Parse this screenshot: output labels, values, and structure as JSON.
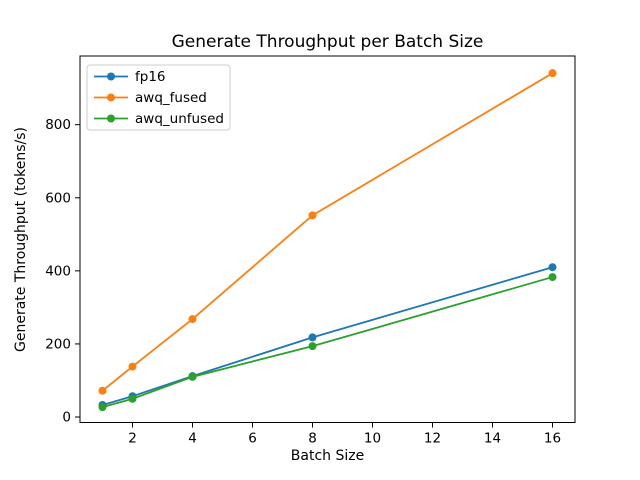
{
  "figure": {
    "background": "#ffffff",
    "frame_color": "#000000",
    "text_color": "#000000"
  },
  "chart_data": {
    "type": "line",
    "title": "Generate Throughput per Batch Size",
    "xlabel": "Batch Size",
    "ylabel": "Generate Throughput (tokens/s)",
    "x": [
      1,
      2,
      4,
      8,
      16
    ],
    "series": [
      {
        "name": "fp16",
        "color": "#1f77b4",
        "marker": "o",
        "values": [
          33,
          57,
          112,
          218,
          410
        ]
      },
      {
        "name": "awq_fused",
        "color": "#ff7f0e",
        "marker": "o",
        "values": [
          72,
          138,
          268,
          552,
          941
        ]
      },
      {
        "name": "awq_unfused",
        "color": "#2ca02c",
        "marker": "o",
        "values": [
          27,
          50,
          110,
          194,
          383
        ]
      }
    ],
    "xticks": [
      2,
      4,
      6,
      8,
      10,
      12,
      14,
      16
    ],
    "yticks": [
      0,
      200,
      400,
      600,
      800
    ],
    "xlim": [
      0.25,
      16.75
    ],
    "ylim": [
      -15,
      988
    ],
    "grid": false,
    "legend": {
      "position": "upper left",
      "border_color": "#cccccc",
      "background": "#ffffff"
    }
  }
}
